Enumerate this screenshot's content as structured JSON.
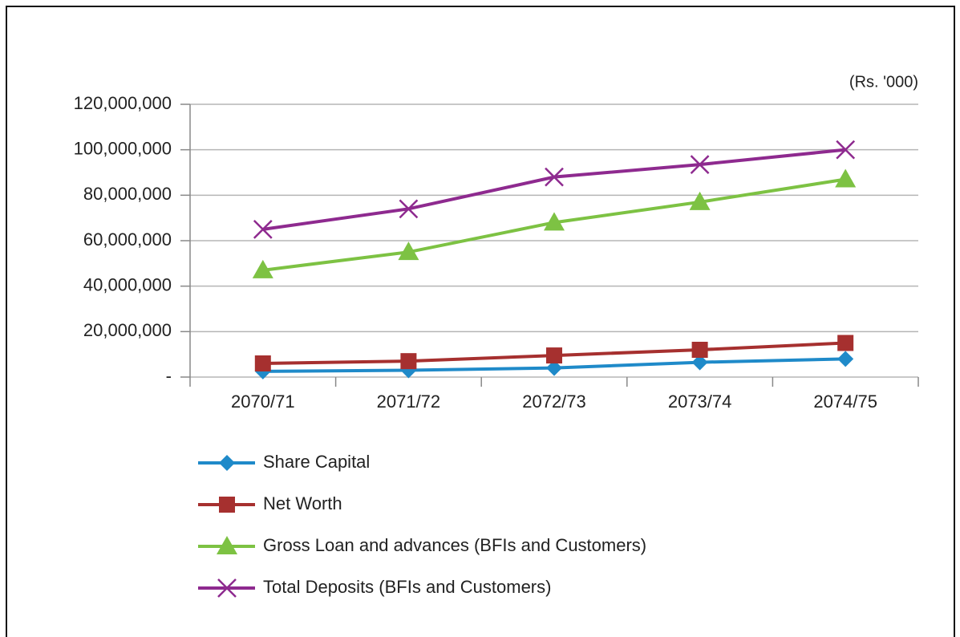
{
  "chart_data": {
    "type": "line",
    "unit_label": "(Rs. '000)",
    "categories": [
      "2070/71",
      "2071/72",
      "2072/73",
      "2073/74",
      "2074/75"
    ],
    "series": [
      {
        "name": "Share Capital",
        "color": "#1f8ac9",
        "marker": "diamond",
        "values": [
          2500000,
          3000000,
          4000000,
          6500000,
          8000000
        ]
      },
      {
        "name": "Net Worth",
        "color": "#a6302f",
        "marker": "square",
        "values": [
          6000000,
          7000000,
          9500000,
          12000000,
          15000000
        ]
      },
      {
        "name": "Gross Loan and advances (BFIs and Customers)",
        "color": "#7dc243",
        "marker": "triangle",
        "values": [
          47000000,
          55000000,
          68000000,
          77000000,
          87000000
        ]
      },
      {
        "name": "Total Deposits (BFIs and Customers)",
        "color": "#8e2a8f",
        "marker": "cross",
        "values": [
          65000000,
          74000000,
          88000000,
          93500000,
          100000000
        ]
      }
    ],
    "ylim": [
      0,
      120000000
    ],
    "yticks": [
      {
        "value": 0,
        "label": "-"
      },
      {
        "value": 20000000,
        "label": "20,000,000"
      },
      {
        "value": 40000000,
        "label": "40,000,000"
      },
      {
        "value": 60000000,
        "label": "60,000,000"
      },
      {
        "value": 80000000,
        "label": "80,000,000"
      },
      {
        "value": 100000000,
        "label": "100,000,000"
      },
      {
        "value": 120000000,
        "label": "120,000,000"
      }
    ],
    "grid": true,
    "legend": "bottom"
  }
}
